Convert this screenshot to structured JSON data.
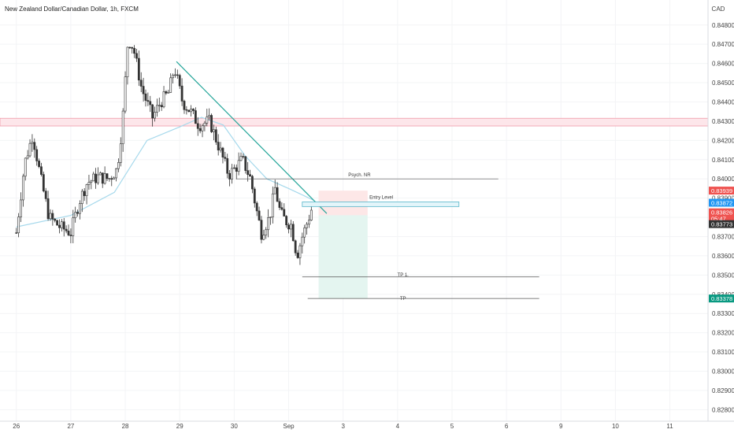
{
  "header": {
    "symbol_title": "New Zealand Dollar/Canadian Dollar, 1h, FXCM"
  },
  "price_axis": {
    "currency_label": "CAD"
  },
  "colors": {
    "up": "#26a69a",
    "down": "#ef5350",
    "candle": "#333333",
    "ma": "#a6d9ec",
    "trendline": "#26a69a",
    "resistance_fill": "#fde6ea",
    "resistance_border": "#ef9aa9",
    "entry_fill": "#e3f5fa",
    "entry_border": "#57b6c9",
    "stop_zone": "#fde4e4",
    "target_zone": "#e3f4ef"
  },
  "annotations": {
    "psych_label": "Psych. NR",
    "entry_label": "Entry Level",
    "tp1_label": "TP 1.",
    "tp_label": "TP"
  },
  "price_tags": [
    {
      "value": "0.83939",
      "role": "stop",
      "color": "#ef5350"
    },
    {
      "value": "0.83872",
      "role": "entry",
      "color": "#2196f3"
    },
    {
      "value": "0.83826",
      "role": "last",
      "color": "#ef5350",
      "sub": "05:47"
    },
    {
      "value": "0.83773",
      "role": "close",
      "color": "#333333"
    },
    {
      "value": "0.83378",
      "role": "target",
      "color": "#089981"
    }
  ],
  "chart_data": {
    "type": "candlestick",
    "title": "New Zealand Dollar/Canadian Dollar, 1h, FXCM",
    "x_tick_labels": [
      "26",
      "27",
      "28",
      "29",
      "30",
      "Sep",
      "3",
      "4",
      "5",
      "6",
      "9",
      "10",
      "11"
    ],
    "y_tick_labels": [
      "0.84800",
      "0.84700",
      "0.84600",
      "0.84500",
      "0.84400",
      "0.84300",
      "0.84200",
      "0.84100",
      "0.84000",
      "0.83900",
      "0.83800",
      "0.83700",
      "0.83600",
      "0.83500",
      "0.83400",
      "0.83300",
      "0.83200",
      "0.83100",
      "0.83000",
      "0.82900",
      "0.82800"
    ],
    "ylim": [
      0.8274,
      0.8493
    ],
    "close_path": [
      [
        0.0,
        0.8372
      ],
      [
        0.15,
        0.8408
      ],
      [
        0.3,
        0.8423
      ],
      [
        0.45,
        0.84
      ],
      [
        0.6,
        0.838
      ],
      [
        0.8,
        0.8375
      ],
      [
        1.0,
        0.8372
      ],
      [
        1.15,
        0.8388
      ],
      [
        1.3,
        0.8398
      ],
      [
        1.5,
        0.8401
      ],
      [
        1.7,
        0.84
      ],
      [
        1.85,
        0.8405
      ],
      [
        1.95,
        0.843
      ],
      [
        2.05,
        0.8473
      ],
      [
        2.15,
        0.8468
      ],
      [
        2.3,
        0.8447
      ],
      [
        2.5,
        0.8432
      ],
      [
        2.65,
        0.844
      ],
      [
        2.8,
        0.8445
      ],
      [
        2.9,
        0.8458
      ],
      [
        3.05,
        0.844
      ],
      [
        3.2,
        0.8435
      ],
      [
        3.35,
        0.8428
      ],
      [
        3.55,
        0.843
      ],
      [
        3.7,
        0.8418
      ],
      [
        3.9,
        0.8402
      ],
      [
        4.0,
        0.8405
      ],
      [
        4.15,
        0.841
      ],
      [
        4.3,
        0.84
      ],
      [
        4.4,
        0.8385
      ],
      [
        4.5,
        0.8372
      ],
      [
        4.65,
        0.838
      ],
      [
        4.75,
        0.8395
      ],
      [
        4.85,
        0.8382
      ],
      [
        4.95,
        0.8378
      ],
      [
        5.05,
        0.8376
      ],
      [
        5.15,
        0.836
      ],
      [
        5.25,
        0.837
      ],
      [
        5.35,
        0.8378
      ],
      [
        5.45,
        0.8387
      ]
    ],
    "moving_average": [
      [
        0.0,
        0.8375
      ],
      [
        1.0,
        0.8381
      ],
      [
        1.8,
        0.8393
      ],
      [
        2.4,
        0.842
      ],
      [
        3.0,
        0.8427
      ],
      [
        3.4,
        0.8432
      ],
      [
        3.8,
        0.8428
      ],
      [
        4.2,
        0.8412
      ],
      [
        4.6,
        0.84
      ],
      [
        5.0,
        0.8395
      ],
      [
        5.45,
        0.8389
      ]
    ],
    "resistance_zone": [
      0.84275,
      0.84315
    ],
    "trendline": [
      [
        2.94,
        0.8461
      ],
      [
        5.7,
        0.8382
      ]
    ],
    "entry_zone": [
      0.83856,
      0.8388
    ],
    "psych_level": 0.84,
    "tp1_level": 0.8349,
    "tp_level": 0.83378,
    "stop_level": 0.83939,
    "x_range": [
      -0.3,
      12.7
    ]
  }
}
